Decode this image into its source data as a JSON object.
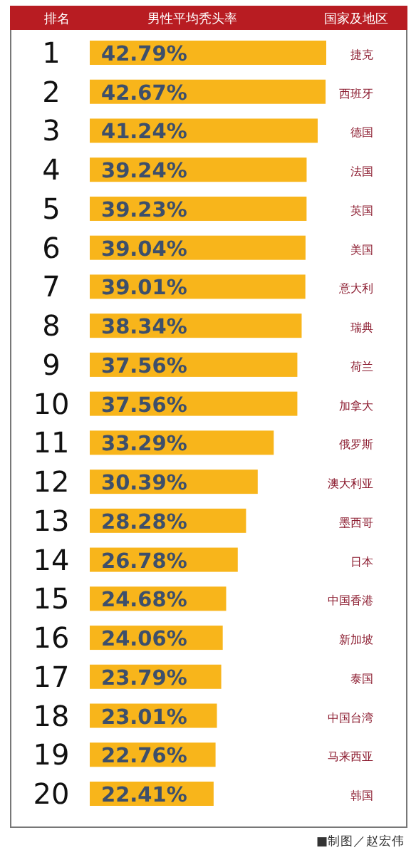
{
  "chart_data": {
    "type": "bar",
    "orientation": "horizontal",
    "title": "男性平均秃头率",
    "ylabel": "排名",
    "y2label": "国家及地区",
    "categories": [
      "1",
      "2",
      "3",
      "4",
      "5",
      "6",
      "7",
      "8",
      "9",
      "10",
      "11",
      "12",
      "13",
      "14",
      "15",
      "16",
      "17",
      "18",
      "19",
      "20"
    ],
    "y2_categories": [
      "捷克",
      "西班牙",
      "德国",
      "法国",
      "英国",
      "美国",
      "意大利",
      "瑞典",
      "荷兰",
      "加拿大",
      "俄罗斯",
      "澳大利亚",
      "墨西哥",
      "日本",
      "中国香港",
      "新加坡",
      "泰国",
      "中国台湾",
      "马来西亚",
      "韩国"
    ],
    "values": [
      42.79,
      42.67,
      41.24,
      39.24,
      39.23,
      39.04,
      39.01,
      38.34,
      37.56,
      37.56,
      33.29,
      30.39,
      28.28,
      26.78,
      24.68,
      24.06,
      23.79,
      23.01,
      22.76,
      22.41
    ],
    "value_labels": [
      "42.79%",
      "42.67%",
      "41.24%",
      "39.24%",
      "39.23%",
      "39.04%",
      "39.01%",
      "38.34%",
      "37.56%",
      "37.56%",
      "33.29%",
      "30.39%",
      "28.28%",
      "26.78%",
      "24.68%",
      "24.06%",
      "23.79%",
      "23.01%",
      "22.76%",
      "22.41%"
    ],
    "color": "#f8b51b",
    "tick_labels": "y",
    "annotations": [
      "■制图／赵宏伟"
    ]
  }
}
